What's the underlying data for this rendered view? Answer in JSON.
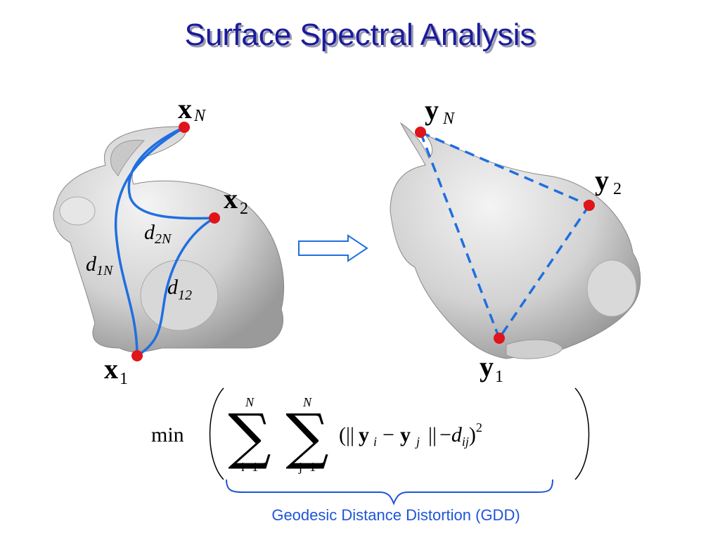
{
  "title": "Surface Spectral Analysis",
  "left_points": [
    {
      "base": "x",
      "sub": "N"
    },
    {
      "base": "x",
      "sub": "2"
    },
    {
      "base": "x",
      "sub": "1"
    }
  ],
  "left_distances": [
    {
      "base": "d",
      "sub": "2N"
    },
    {
      "base": "d",
      "sub": "1N"
    },
    {
      "base": "d",
      "sub": "12"
    }
  ],
  "right_points": [
    {
      "base": "y",
      "sub": "N"
    },
    {
      "base": "y",
      "sub": "2"
    },
    {
      "base": "y",
      "sub": "1"
    }
  ],
  "formula": {
    "operator": "min",
    "sums": [
      {
        "upper": "N",
        "lower": "i=1"
      },
      {
        "upper": "N",
        "lower": "j=1"
      }
    ],
    "term": {
      "open": "(||",
      "y_a": "y",
      "i": "i",
      "minus": "−",
      "y_b": "y",
      "j": "j",
      "norm": "||",
      "minus_d": "−",
      "d": "d",
      "ij": "ij",
      "close": ")",
      "power": "2"
    }
  },
  "caption": "Geodesic Distance Distortion (GDD)"
}
